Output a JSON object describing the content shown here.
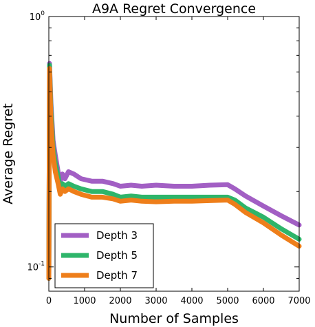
{
  "chart_data": {
    "type": "line",
    "title": "A9A Regret Convergence",
    "xlabel": "Number of Samples",
    "ylabel": "Average Regret",
    "xlim": [
      0,
      7000
    ],
    "ylim": [
      0.08,
      1.0
    ],
    "yscale": "log",
    "x_ticks": [
      "0",
      "1000",
      "2000",
      "3000",
      "4000",
      "5000",
      "6000",
      "7000"
    ],
    "y_tick_labels": [
      {
        "value": 1.0,
        "base": "10",
        "exp": "0"
      },
      {
        "value": 0.1,
        "base": "10",
        "exp": "-1"
      }
    ],
    "grid": false,
    "legend": "bottom-left",
    "series": [
      {
        "name": "Depth 3",
        "color": "#a25fc4",
        "points": [
          [
            0,
            0.09
          ],
          [
            20,
            0.65
          ],
          [
            60,
            0.45
          ],
          [
            120,
            0.32
          ],
          [
            180,
            0.28
          ],
          [
            260,
            0.24
          ],
          [
            320,
            0.22
          ],
          [
            380,
            0.235
          ],
          [
            450,
            0.225
          ],
          [
            550,
            0.24
          ],
          [
            700,
            0.235
          ],
          [
            900,
            0.225
          ],
          [
            1200,
            0.22
          ],
          [
            1500,
            0.22
          ],
          [
            1800,
            0.215
          ],
          [
            2000,
            0.21
          ],
          [
            2300,
            0.212
          ],
          [
            2600,
            0.21
          ],
          [
            3000,
            0.212
          ],
          [
            3500,
            0.21
          ],
          [
            4000,
            0.21
          ],
          [
            4500,
            0.212
          ],
          [
            5000,
            0.213
          ],
          [
            5200,
            0.205
          ],
          [
            5500,
            0.192
          ],
          [
            6000,
            0.175
          ],
          [
            6500,
            0.16
          ],
          [
            7000,
            0.147
          ]
        ]
      },
      {
        "name": "Depth 5",
        "color": "#2eb56a",
        "points": [
          [
            0,
            0.09
          ],
          [
            20,
            0.64
          ],
          [
            60,
            0.42
          ],
          [
            120,
            0.3
          ],
          [
            180,
            0.26
          ],
          [
            260,
            0.23
          ],
          [
            320,
            0.205
          ],
          [
            380,
            0.215
          ],
          [
            450,
            0.21
          ],
          [
            550,
            0.215
          ],
          [
            700,
            0.21
          ],
          [
            900,
            0.205
          ],
          [
            1200,
            0.2
          ],
          [
            1500,
            0.2
          ],
          [
            1800,
            0.195
          ],
          [
            2000,
            0.19
          ],
          [
            2300,
            0.192
          ],
          [
            2600,
            0.19
          ],
          [
            3000,
            0.19
          ],
          [
            3500,
            0.19
          ],
          [
            4000,
            0.19
          ],
          [
            4500,
            0.19
          ],
          [
            5000,
            0.19
          ],
          [
            5200,
            0.185
          ],
          [
            5500,
            0.172
          ],
          [
            6000,
            0.158
          ],
          [
            6500,
            0.142
          ],
          [
            7000,
            0.129
          ]
        ]
      },
      {
        "name": "Depth 7",
        "color": "#ee7e1a",
        "points": [
          [
            0,
            0.09
          ],
          [
            20,
            0.62
          ],
          [
            60,
            0.38
          ],
          [
            120,
            0.28
          ],
          [
            180,
            0.24
          ],
          [
            260,
            0.215
          ],
          [
            320,
            0.195
          ],
          [
            380,
            0.205
          ],
          [
            450,
            0.2
          ],
          [
            550,
            0.205
          ],
          [
            700,
            0.2
          ],
          [
            900,
            0.195
          ],
          [
            1200,
            0.19
          ],
          [
            1500,
            0.19
          ],
          [
            1800,
            0.187
          ],
          [
            2000,
            0.183
          ],
          [
            2300,
            0.185
          ],
          [
            2600,
            0.183
          ],
          [
            3000,
            0.182
          ],
          [
            3500,
            0.183
          ],
          [
            4000,
            0.183
          ],
          [
            4500,
            0.184
          ],
          [
            5000,
            0.185
          ],
          [
            5200,
            0.178
          ],
          [
            5500,
            0.165
          ],
          [
            6000,
            0.15
          ],
          [
            6500,
            0.134
          ],
          [
            7000,
            0.121
          ]
        ]
      }
    ]
  }
}
